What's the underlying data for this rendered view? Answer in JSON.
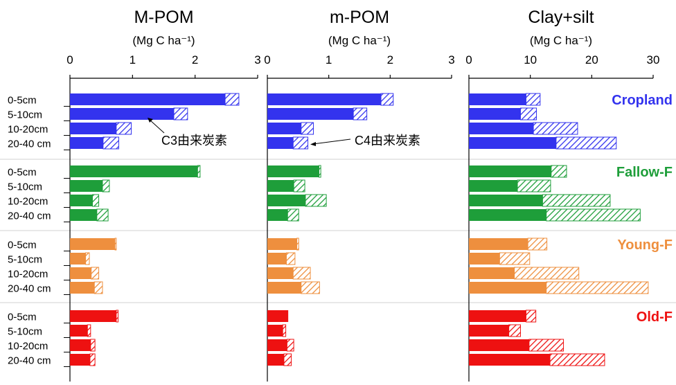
{
  "chart_data": {
    "type": "bar",
    "stacked": true,
    "orientation": "horizontal",
    "colors": {
      "Cropland": "#3333ee",
      "Fallow-F": "#1e9e3a",
      "Young-F": "#ee8f3e",
      "Old-F": "#ee1111"
    },
    "groups": [
      "Cropland",
      "Fallow-F",
      "Young-F",
      "Old-F"
    ],
    "depths": [
      "0-5cm",
      "5-10cm",
      "10-20cm",
      "20-40 cm"
    ],
    "series": [
      "C3由来炭素",
      "C4由来炭素"
    ],
    "annotations": [
      {
        "text": "C3由来炭素",
        "panel": 0,
        "group": 0,
        "row": 1
      },
      {
        "text": "C4由来炭素",
        "panel": 1,
        "group": 0,
        "row": 3
      }
    ],
    "panels": [
      {
        "title": "M-POM",
        "unit": "(Mg C ha⁻¹)",
        "xlim": [
          0,
          3
        ],
        "ticks": [
          "0",
          "1",
          "2",
          "3"
        ],
        "c3": [
          [
            2.48,
            1.66,
            0.74,
            0.53
          ],
          [
            2.04,
            0.52,
            0.36,
            0.43
          ],
          [
            0.72,
            0.25,
            0.34,
            0.39
          ],
          [
            0.74,
            0.28,
            0.33,
            0.32
          ]
        ],
        "c4": [
          [
            0.22,
            0.22,
            0.24,
            0.25
          ],
          [
            0.04,
            0.11,
            0.1,
            0.18
          ],
          [
            0.02,
            0.06,
            0.12,
            0.13
          ],
          [
            0.03,
            0.05,
            0.07,
            0.08
          ]
        ]
      },
      {
        "title": "m-POM",
        "unit": "(Mg C ha⁻¹)",
        "xlim": [
          0,
          3
        ],
        "ticks": [
          "0",
          "1",
          "2",
          "3"
        ],
        "c3": [
          [
            1.85,
            1.4,
            0.55,
            0.42
          ],
          [
            0.84,
            0.43,
            0.62,
            0.33
          ],
          [
            0.48,
            0.31,
            0.42,
            0.55
          ],
          [
            0.34,
            0.25,
            0.32,
            0.27
          ]
        ],
        "c4": [
          [
            0.2,
            0.22,
            0.2,
            0.24
          ],
          [
            0.03,
            0.18,
            0.34,
            0.18
          ],
          [
            0.03,
            0.14,
            0.28,
            0.3
          ],
          [
            0.0,
            0.05,
            0.11,
            0.12
          ]
        ]
      },
      {
        "title": "Clay+silt",
        "unit": "(Mg C ha⁻¹)",
        "xlim": [
          0,
          30
        ],
        "ticks": [
          "0",
          "10",
          "20",
          "30"
        ],
        "c3": [
          [
            9.3,
            8.4,
            10.5,
            14.2
          ],
          [
            13.4,
            7.9,
            12.0,
            12.6
          ],
          [
            9.6,
            5.0,
            7.4,
            12.6
          ],
          [
            9.3,
            6.5,
            9.8,
            13.2
          ]
        ],
        "c4": [
          [
            2.3,
            2.6,
            7.2,
            9.8
          ],
          [
            2.5,
            5.4,
            11.0,
            15.3
          ],
          [
            3.1,
            4.9,
            10.5,
            16.6
          ],
          [
            1.6,
            1.9,
            5.6,
            8.9
          ]
        ]
      }
    ]
  }
}
